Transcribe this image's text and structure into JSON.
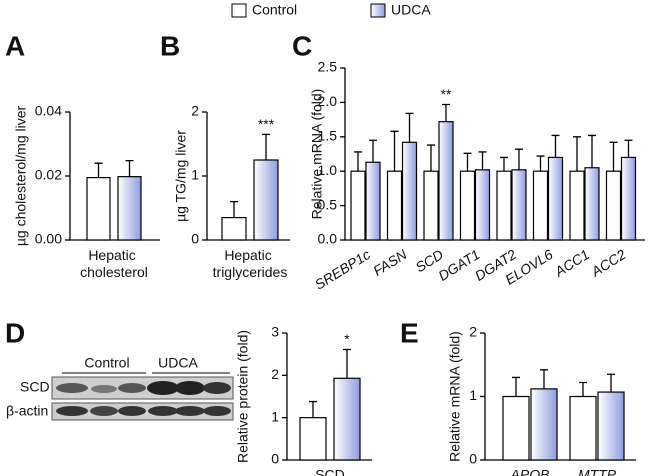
{
  "legend": [
    {
      "name": "Control",
      "color": "#ffffff"
    },
    {
      "name": "UDCA",
      "color": "#8e9de2"
    }
  ],
  "blot": {
    "groups": [
      "Control",
      "UDCA"
    ],
    "rows": [
      "SCD",
      "β-actin"
    ]
  },
  "chart_data": [
    {
      "type": "bar",
      "panel": "A",
      "ylabel": "µg cholesterol/mg liver",
      "categories": [
        "Hepatic cholesterol"
      ],
      "series": [
        {
          "values": [
            0.0195
          ],
          "errors": [
            0.0045
          ]
        },
        {
          "values": [
            0.0198
          ],
          "errors": [
            0.005
          ]
        }
      ],
      "ylim": [
        0,
        0.04
      ],
      "yticks": [
        {
          "value": 0,
          "label": "0.00"
        },
        0.02,
        0.04
      ]
    },
    {
      "type": "bar",
      "panel": "B",
      "ylabel": "µg TG/mg liver",
      "categories": [
        "Hepatic triglycerides"
      ],
      "series": [
        {
          "values": [
            0.35
          ],
          "errors": [
            0.25
          ]
        },
        {
          "values": [
            1.25
          ],
          "errors": [
            0.4
          ]
        }
      ],
      "ylim": [
        0,
        2
      ],
      "yticks": [
        0,
        1,
        2
      ],
      "annotations": [
        {
          "x": "Hepatic triglycerides",
          "text": "***"
        }
      ]
    },
    {
      "type": "bar",
      "panel": "C",
      "ylabel": "Relative mRNA (fold)",
      "category_style": "italic",
      "categories": [
        "SREBP1c",
        "FASN",
        "SCD",
        "DGAT1",
        "DGAT2",
        "ELOVL6",
        "ACC1",
        "ACC2"
      ],
      "series": [
        {
          "values": [
            1,
            1,
            1,
            1,
            1,
            1,
            1,
            1
          ],
          "errors": [
            0.28,
            0.58,
            0.38,
            0.26,
            0.2,
            0.22,
            0.5,
            0.42
          ]
        },
        {
          "values": [
            1.13,
            1.42,
            1.72,
            1.02,
            1.02,
            1.2,
            1.05,
            1.2
          ],
          "errors": [
            0.32,
            0.42,
            0.25,
            0.26,
            0.3,
            0.32,
            0.47,
            0.25
          ]
        }
      ],
      "ylim": [
        0,
        2.5
      ],
      "yticks": [
        {
          "value": 0,
          "label": "0.0"
        },
        0.5,
        {
          "value": 1,
          "label": "1.0"
        },
        1.5,
        {
          "value": 2,
          "label": "2.0"
        },
        2.5
      ],
      "annotations": [
        {
          "x": "SCD",
          "text": "**"
        }
      ]
    },
    {
      "type": "bar",
      "panel": "D",
      "ylabel": "Relative protein (fold)",
      "categories": [
        "SCD"
      ],
      "series": [
        {
          "values": [
            1
          ],
          "errors": [
            0.38
          ]
        },
        {
          "values": [
            1.93
          ],
          "errors": [
            0.68
          ]
        }
      ],
      "ylim": [
        0,
        3
      ],
      "yticks": [
        0,
        1,
        2,
        3
      ],
      "annotations": [
        {
          "x": "SCD",
          "text": "*"
        }
      ]
    },
    {
      "type": "bar",
      "panel": "E",
      "ylabel": "Relative mRNA (fold)",
      "category_style": "italic",
      "categories": [
        "APOB",
        "MTTP"
      ],
      "series": [
        {
          "values": [
            1,
            1
          ],
          "errors": [
            0.3,
            0.22
          ]
        },
        {
          "values": [
            1.12,
            1.07
          ],
          "errors": [
            0.3,
            0.28
          ]
        }
      ],
      "ylim": [
        0,
        2
      ],
      "yticks": [
        0,
        1,
        2
      ]
    }
  ]
}
